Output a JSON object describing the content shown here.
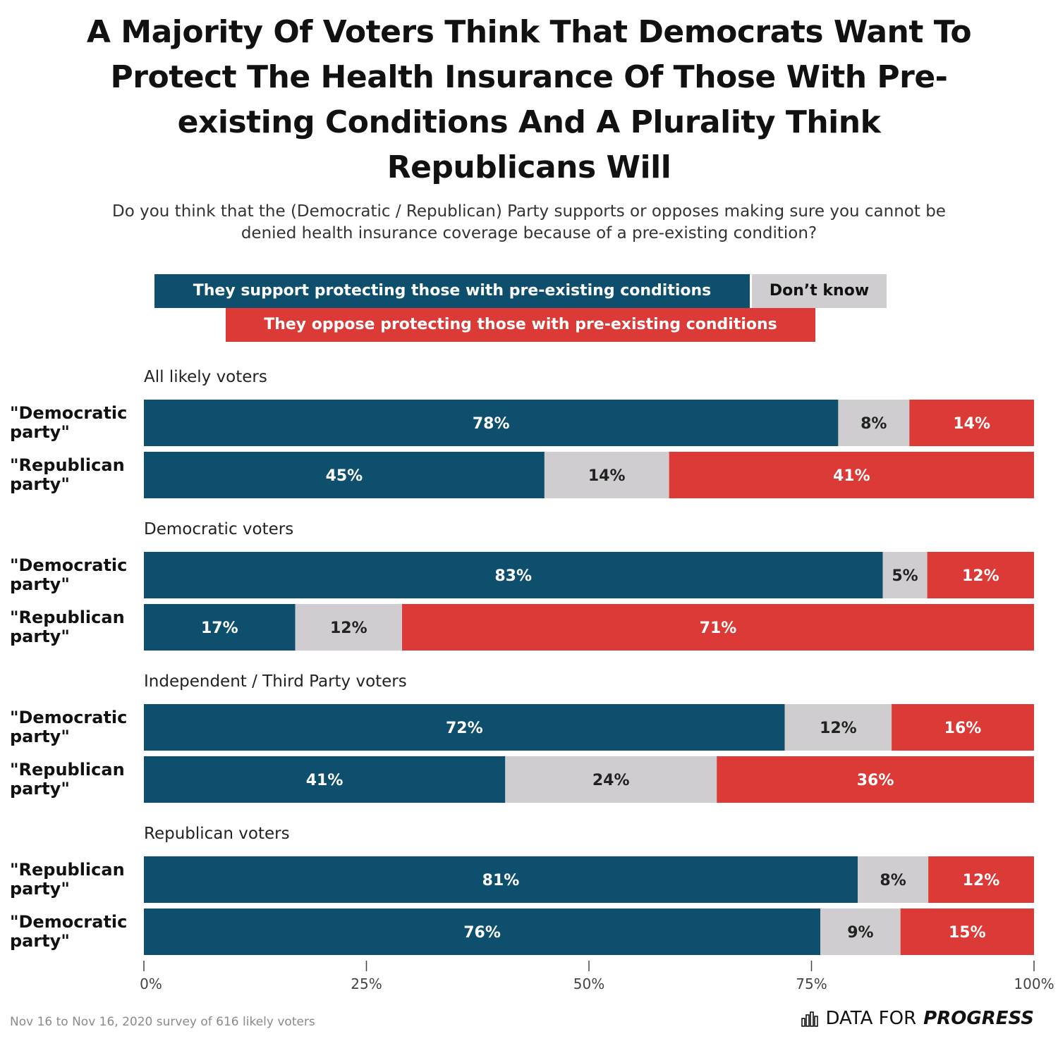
{
  "title_lines": [
    "A Majority Of Voters Think That Democrats Want To",
    "Protect The Health Insurance Of Those With Pre-",
    "existing Conditions And A Plurality Think",
    "Republicans Will"
  ],
  "subtitle_lines": [
    "Do you think that the (Democratic / Republican) Party supports or opposes making sure you cannot be",
    "denied health insurance coverage because of a pre-existing condition?"
  ],
  "colors": {
    "support": "#0e4f6e",
    "dont_know": "#d0cdd0",
    "oppose": "#db3a36"
  },
  "legend": {
    "support": "They support protecting those with pre-existing conditions",
    "dont_know": "Don’t know",
    "oppose": "They oppose protecting those with pre-existing conditions"
  },
  "chart_data": {
    "type": "bar",
    "orientation": "horizontal-stacked",
    "series": [
      "They support protecting those with pre-existing conditions",
      "Don’t know",
      "They oppose protecting those with pre-existing conditions"
    ],
    "groups": [
      {
        "name": "All likely voters",
        "rows": [
          {
            "label": [
              "\"Democratic",
              "party\""
            ],
            "values": [
              78,
              8,
              14
            ],
            "labels": [
              "78%",
              "8%",
              "14%"
            ]
          },
          {
            "label": [
              "\"Republican",
              "party\""
            ],
            "values": [
              45,
              14,
              41
            ],
            "labels": [
              "45%",
              "14%",
              "41%"
            ]
          }
        ]
      },
      {
        "name": "Democratic voters",
        "rows": [
          {
            "label": [
              "\"Democratic",
              "party\""
            ],
            "values": [
              83,
              5,
              12
            ],
            "labels": [
              "83%",
              "5%",
              "12%"
            ]
          },
          {
            "label": [
              "\"Republican",
              "party\""
            ],
            "values": [
              17,
              12,
              71
            ],
            "labels": [
              "17%",
              "12%",
              "71%"
            ]
          }
        ]
      },
      {
        "name": "Independent / Third Party voters",
        "rows": [
          {
            "label": [
              "\"Democratic",
              "party\""
            ],
            "values": [
              72,
              12,
              16
            ],
            "labels": [
              "72%",
              "12%",
              "16%"
            ]
          },
          {
            "label": [
              "\"Republican",
              "party\""
            ],
            "values": [
              41,
              24,
              36
            ],
            "labels": [
              "41%",
              "24%",
              "36%"
            ]
          }
        ]
      },
      {
        "name": "Republican voters",
        "rows": [
          {
            "label": [
              "\"Republican",
              "party\""
            ],
            "values": [
              81,
              8,
              12
            ],
            "labels": [
              "81%",
              "8%",
              "12%"
            ]
          },
          {
            "label": [
              "\"Democratic",
              "party\""
            ],
            "values": [
              76,
              9,
              15
            ],
            "labels": [
              "76%",
              "9%",
              "15%"
            ]
          }
        ]
      }
    ],
    "x_ticks": [
      "0%",
      "25%",
      "50%",
      "75%",
      "100%"
    ],
    "xlim": [
      0,
      100
    ]
  },
  "footer": {
    "source": "Nov 16 to Nov 16, 2020 survey of 616 likely voters",
    "brand_data_for": "DATA FOR",
    "brand_progress": "PROGRESS"
  }
}
